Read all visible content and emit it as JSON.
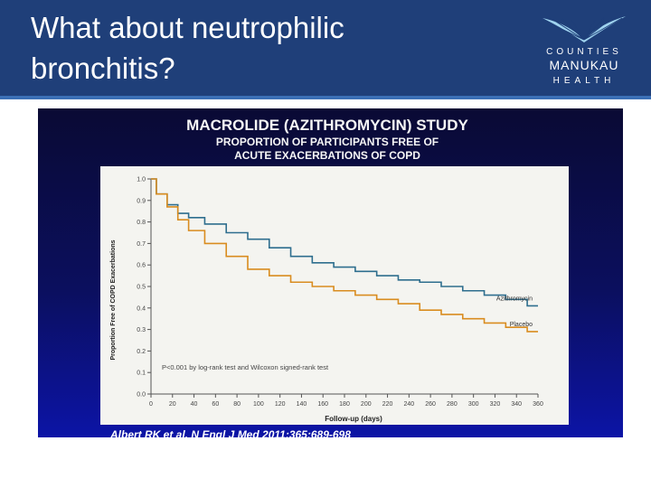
{
  "slide": {
    "title_line1": "What about neutrophilic",
    "title_line2": "bronchitis?"
  },
  "logo": {
    "line1": "COUNTIES",
    "line2": "MANUKAU",
    "line3": "HEALTH"
  },
  "figure": {
    "title": "MACROLIDE (AZITHROMYCIN) STUDY",
    "subtitle_line1": "PROPORTION OF PARTICIPANTS FREE OF",
    "subtitle_line2": "ACUTE EXACERBATIONS OF COPD",
    "citation": "Albert RK et al. N Engl J Med 2011;365:689-698",
    "pvalue_note": "P<0.001 by log-rank test and Wilcoxon signed-rank test",
    "colors": {
      "azithromycin": "#2e6e8e",
      "placebo": "#d98c1f"
    }
  },
  "chart_data": {
    "type": "line",
    "title": "",
    "xlabel": "Follow-up (days)",
    "ylabel": "Proportion Free of COPD Exacerbations",
    "xlim": [
      0,
      360
    ],
    "ylim": [
      0,
      1.0
    ],
    "x_ticks": [
      0,
      20,
      40,
      60,
      80,
      100,
      120,
      140,
      160,
      180,
      200,
      220,
      240,
      260,
      280,
      300,
      320,
      340,
      360
    ],
    "y_ticks": [
      0.0,
      0.1,
      0.2,
      0.3,
      0.4,
      0.5,
      0.6,
      0.7,
      0.8,
      0.9,
      1.0
    ],
    "y_tick_labels": [
      "0.0",
      "0.1",
      "0.2",
      "0.3",
      "0.4",
      "0.5",
      "0.6",
      "0.7",
      "0.8",
      "0.9",
      "1.0"
    ],
    "grid": false,
    "series": [
      {
        "name": "Azithromycin",
        "x": [
          0,
          10,
          20,
          30,
          40,
          60,
          80,
          100,
          120,
          140,
          160,
          180,
          200,
          220,
          240,
          260,
          280,
          300,
          320,
          340,
          360
        ],
        "y": [
          1.0,
          0.93,
          0.88,
          0.84,
          0.82,
          0.79,
          0.75,
          0.72,
          0.68,
          0.64,
          0.61,
          0.59,
          0.57,
          0.55,
          0.53,
          0.52,
          0.5,
          0.48,
          0.46,
          0.44,
          0.41
        ]
      },
      {
        "name": "Placebo",
        "x": [
          0,
          10,
          20,
          30,
          40,
          60,
          80,
          100,
          120,
          140,
          160,
          180,
          200,
          220,
          240,
          260,
          280,
          300,
          320,
          340,
          360
        ],
        "y": [
          1.0,
          0.93,
          0.87,
          0.81,
          0.76,
          0.7,
          0.64,
          0.58,
          0.55,
          0.52,
          0.5,
          0.48,
          0.46,
          0.44,
          0.42,
          0.39,
          0.37,
          0.35,
          0.33,
          0.31,
          0.29
        ]
      }
    ]
  }
}
